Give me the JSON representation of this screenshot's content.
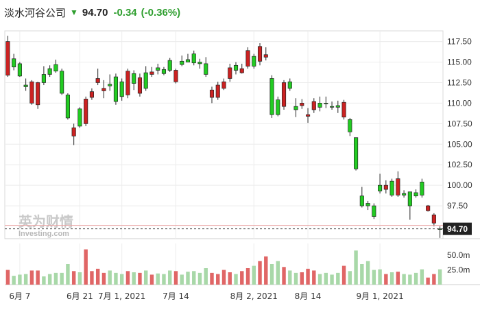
{
  "header": {
    "title": "淡水河谷公司",
    "price": "94.70",
    "change": "-0.34",
    "change_pct": "(-0.36%)",
    "direction_icon": "down-arrow-icon"
  },
  "watermark": {
    "line1": "英为财情",
    "line2": "Investing.com"
  },
  "colors": {
    "up": "#22cc22",
    "down": "#cc2222",
    "vol_up": "#a8d8a8",
    "vol_down": "#e06666",
    "last": "#cc4444"
  },
  "chart_data": {
    "type": "candlestick",
    "y_ticks": [
      "117.50",
      "115.00",
      "112.50",
      "110.00",
      "107.50",
      "105.00",
      "102.50",
      "100.00",
      "97.50"
    ],
    "ylim": [
      93.5,
      118.8
    ],
    "last_price_label": "94.70",
    "last_price": 94.7,
    "volume_ticks": [
      "50.0m",
      "25.0m"
    ],
    "volume_ylim": [
      0,
      70
    ],
    "x_ticks": [
      {
        "label": "6月 7",
        "index": 2
      },
      {
        "label": "6月 21",
        "index": 12
      },
      {
        "label": "7月 1, 2021",
        "index": 19
      },
      {
        "label": "7月 14",
        "index": 28
      },
      {
        "label": "8月 2, 2021",
        "index": 41
      },
      {
        "label": "8月 14",
        "index": 50
      },
      {
        "label": "9月 1, 2021",
        "index": 62
      }
    ],
    "candles": [
      [
        113.4,
        117.5,
        118.2,
        113.2,
        25,
        "d"
      ],
      [
        115.4,
        114.4,
        116.0,
        114.0,
        15,
        "u"
      ],
      [
        113.3,
        114.8,
        115.0,
        113.2,
        17,
        "u"
      ],
      [
        112.2,
        112.0,
        113.0,
        111.5,
        18,
        "u"
      ],
      [
        112.6,
        110.0,
        112.8,
        109.8,
        24,
        "d"
      ],
      [
        112.5,
        109.8,
        112.6,
        109.3,
        24,
        "d"
      ],
      [
        113.5,
        112.5,
        114.5,
        112.2,
        14,
        "u"
      ],
      [
        113.5,
        114.2,
        114.6,
        113.2,
        18,
        "u"
      ],
      [
        114.7,
        113.9,
        115.3,
        113.7,
        20,
        "u"
      ],
      [
        113.9,
        111.2,
        114.2,
        111.0,
        20,
        "u"
      ],
      [
        111.0,
        108.2,
        111.2,
        108.0,
        35,
        "u"
      ],
      [
        107.0,
        106.0,
        107.5,
        104.9,
        23,
        "d"
      ],
      [
        107.2,
        109.3,
        109.5,
        107.0,
        21,
        "u"
      ],
      [
        107.5,
        110.5,
        110.8,
        107.2,
        60,
        "d"
      ],
      [
        110.7,
        111.4,
        111.8,
        110.4,
        23,
        "d"
      ],
      [
        112.5,
        113.0,
        114.2,
        112.2,
        27,
        "d"
      ],
      [
        111.5,
        111.8,
        112.8,
        110.6,
        20,
        "d"
      ],
      [
        112.3,
        112.1,
        113.5,
        111.5,
        24,
        "u"
      ],
      [
        113.2,
        110.2,
        113.6,
        109.8,
        20,
        "u"
      ],
      [
        112.6,
        110.8,
        113.0,
        110.3,
        18,
        "u"
      ],
      [
        111.0,
        113.9,
        114.2,
        110.6,
        23,
        "d"
      ],
      [
        113.6,
        112.4,
        114.0,
        111.6,
        21,
        "u"
      ],
      [
        113.1,
        111.2,
        113.6,
        110.8,
        20,
        "d"
      ],
      [
        113.7,
        111.8,
        114.5,
        111.5,
        24,
        "u"
      ],
      [
        113.5,
        113.8,
        114.4,
        113.2,
        17,
        "d"
      ],
      [
        114.3,
        114.0,
        114.8,
        113.5,
        19,
        "u"
      ],
      [
        113.6,
        114.1,
        114.4,
        113.4,
        18,
        "u"
      ],
      [
        114.0,
        115.2,
        115.5,
        113.8,
        24,
        "u"
      ],
      [
        112.6,
        114.0,
        114.2,
        112.4,
        23,
        "d"
      ],
      [
        115.1,
        114.7,
        115.8,
        114.5,
        17,
        "u"
      ],
      [
        115.3,
        115.0,
        116.0,
        115.1,
        22,
        "u"
      ],
      [
        114.9,
        116.0,
        116.4,
        114.6,
        23,
        "u"
      ],
      [
        115.0,
        114.8,
        115.4,
        114.2,
        20,
        "u"
      ],
      [
        113.5,
        114.8,
        115.6,
        113.2,
        28,
        "u"
      ],
      [
        111.6,
        110.7,
        112.0,
        110.0,
        20,
        "d"
      ],
      [
        110.7,
        112.2,
        112.6,
        110.4,
        18,
        "d"
      ],
      [
        111.8,
        112.6,
        113.0,
        111.6,
        25,
        "d"
      ],
      [
        113.0,
        114.3,
        114.8,
        112.6,
        21,
        "d"
      ],
      [
        114.6,
        114.0,
        115.0,
        113.5,
        18,
        "u"
      ],
      [
        113.7,
        114.2,
        114.8,
        113.6,
        23,
        "d"
      ],
      [
        114.5,
        116.4,
        116.8,
        114.2,
        28,
        "d"
      ],
      [
        115.7,
        114.5,
        116.0,
        114.2,
        32,
        "u"
      ],
      [
        115.1,
        116.9,
        117.3,
        114.6,
        40,
        "d"
      ],
      [
        115.9,
        115.6,
        116.8,
        115.2,
        48,
        "d"
      ],
      [
        113.0,
        108.6,
        113.4,
        108.2,
        35,
        "u"
      ],
      [
        108.6,
        110.4,
        110.8,
        108.4,
        40,
        "u"
      ],
      [
        109.6,
        112.5,
        112.8,
        109.2,
        30,
        "d"
      ],
      [
        112.6,
        111.8,
        113.0,
        111.5,
        24,
        "u"
      ],
      [
        109.6,
        109.2,
        110.6,
        108.3,
        20,
        "u"
      ],
      [
        110.0,
        109.7,
        110.5,
        109.3,
        21,
        "d"
      ],
      [
        108.6,
        108.4,
        109.4,
        107.6,
        27,
        "d"
      ],
      [
        110.2,
        109.2,
        110.6,
        108.8,
        24,
        "d"
      ],
      [
        109.5,
        110.0,
        110.8,
        109.0,
        18,
        "u"
      ],
      [
        110.0,
        110.0,
        110.8,
        109.4,
        20,
        "u"
      ],
      [
        109.5,
        109.6,
        110.2,
        109.2,
        17,
        "u"
      ],
      [
        109.7,
        109.5,
        110.3,
        108.8,
        20,
        "u"
      ],
      [
        110.1,
        108.3,
        110.4,
        108.0,
        32,
        "d"
      ],
      [
        108.0,
        106.5,
        108.2,
        106.0,
        23,
        "u"
      ],
      [
        105.8,
        102.0,
        105.6,
        101.8,
        58,
        "u"
      ],
      [
        97.5,
        98.7,
        99.8,
        97.3,
        35,
        "u"
      ],
      [
        97.8,
        97.5,
        98.1,
        97.0,
        40,
        "u"
      ],
      [
        97.5,
        96.2,
        97.8,
        95.9,
        25,
        "u"
      ],
      [
        99.3,
        100.0,
        101.4,
        99.0,
        26,
        "u"
      ],
      [
        99.5,
        100.0,
        100.6,
        99.0,
        18,
        "d"
      ],
      [
        100.5,
        98.8,
        100.8,
        98.6,
        21,
        "u"
      ],
      [
        98.8,
        100.8,
        101.7,
        98.6,
        22,
        "d"
      ],
      [
        98.8,
        99.0,
        99.4,
        98.5,
        18,
        "u"
      ],
      [
        99.2,
        97.5,
        99.2,
        95.8,
        17,
        "u"
      ],
      [
        98.7,
        99.1,
        99.5,
        98.5,
        20,
        "u"
      ],
      [
        100.4,
        98.8,
        100.8,
        98.5,
        26,
        "u"
      ],
      [
        97.5,
        96.9,
        97.6,
        96.8,
        12,
        "d"
      ],
      [
        96.4,
        95.4,
        96.6,
        95.0,
        18,
        "d"
      ],
      [
        94.7,
        94.7,
        95.0,
        93.6,
        26,
        "u"
      ]
    ]
  }
}
